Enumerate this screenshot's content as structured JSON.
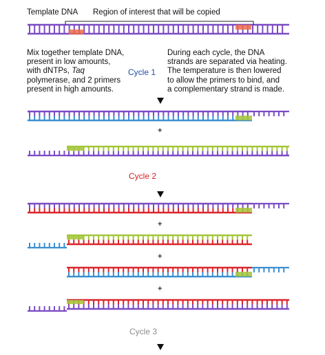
{
  "labels": {
    "template_dna": "Template DNA",
    "region_of_interest": "Region of interest that will be copied",
    "mix_line1": "Mix together template DNA,",
    "mix_line2": "present in low amounts,",
    "mix_line3_pre": "with dNTPs, ",
    "mix_line3_em": "Taq",
    "mix_line4": "polymerase, and 2 primers",
    "mix_line5": "present in high amounts.",
    "during_line1": "During each cycle, the DNA",
    "during_line2": "strands are separated via heating.",
    "during_line3": "The temperature is then lowered",
    "during_line4": "to allow the primers to bind, and",
    "during_line5": "a complementary strand is made."
  },
  "cycles": [
    {
      "label": "Cycle 1",
      "color": "#1f4fa8"
    },
    {
      "label": "Cycle 2",
      "color": "#d42020"
    },
    {
      "label": "Cycle 3",
      "color": "#8a8a8a"
    }
  ],
  "plus_sign": "+",
  "colors": {
    "template": "#7b4bc4",
    "copy_blue": "#3b8fd0",
    "copy_red": "#d9252b",
    "primer_red": "#ef6b4a",
    "primer_green": "#a4c639",
    "arrow": "#111111"
  }
}
